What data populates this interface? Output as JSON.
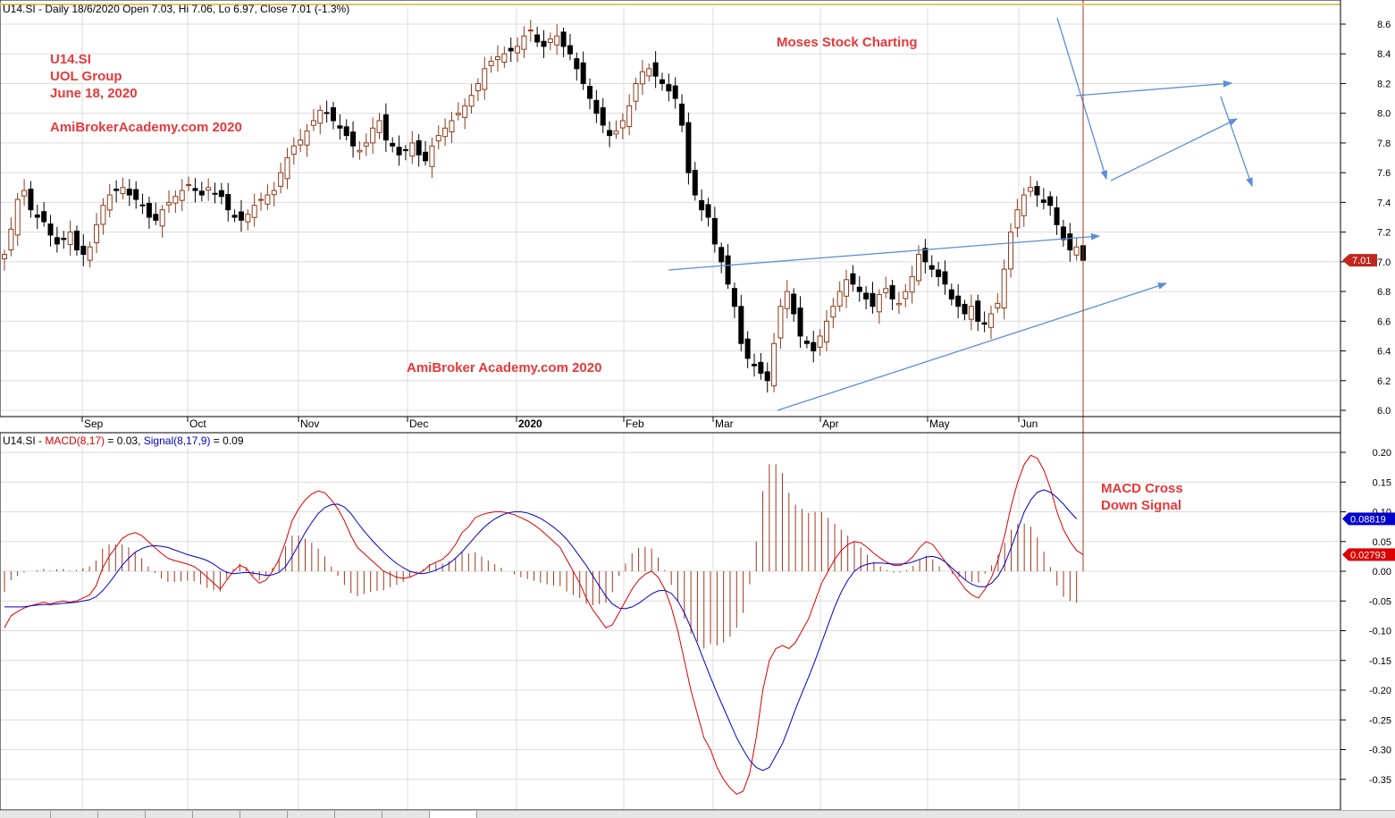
{
  "header": {
    "ticker": "U14.SI",
    "info": " - Daily 18/6/2020 Open 7.03, Hi 7.06, Lo 6.97, Close 7.01 (-1.3%)"
  },
  "macd_header": {
    "ticker": "U14.SI",
    "sep": " - ",
    "macd_label": "MACD(8,17)",
    "macd_value": " = 0.03, ",
    "signal_label": "Signal(8,17,9)",
    "signal_value": " = 0.09"
  },
  "annotations": {
    "ticker": "U14.SI",
    "company": "UOL Group",
    "date": "June 18, 2020",
    "site_top": "AmiBrokerAcademy.com  2020",
    "moses": "Moses Stock Charting",
    "site_mid": "AmiBroker Academy.com  2020",
    "macd_cross_1": "MACD Cross",
    "macd_cross_2": "Down Signal"
  },
  "colors": {
    "accent_red": "#e8383a",
    "candle_up": "#8b3a1a",
    "candle_down": "#000000",
    "macd_line": "#dd0000",
    "signal_line": "#0000cc",
    "histogram": "#a03820",
    "trendline": "#5b8fd6",
    "grid": "#dcdcdc"
  },
  "chart_data": [
    {
      "type": "candlestick",
      "title": "U14.SI - Daily",
      "ylim": [
        5.95,
        8.7
      ],
      "yticks": [
        "8.6",
        "8.4",
        "8.2",
        "8.0",
        "7.8",
        "7.6",
        "7.4",
        "7.2",
        "7.0",
        "6.8",
        "6.6",
        "6.4",
        "6.2",
        "6.0"
      ],
      "months": [
        "Sep",
        "Oct",
        "Nov",
        "Dec",
        "2020",
        "Feb",
        "Mar",
        "Apr",
        "May",
        "Jun"
      ],
      "last_close_label": "7.01",
      "last_close": 7.01,
      "closes": [
        7.05,
        7.22,
        7.42,
        7.48,
        7.35,
        7.3,
        7.27,
        7.18,
        7.12,
        7.15,
        7.2,
        7.08,
        7.05,
        7.1,
        7.25,
        7.38,
        7.45,
        7.48,
        7.5,
        7.45,
        7.42,
        7.38,
        7.3,
        7.28,
        7.35,
        7.4,
        7.44,
        7.48,
        7.52,
        7.48,
        7.45,
        7.5,
        7.46,
        7.44,
        7.35,
        7.3,
        7.28,
        7.32,
        7.38,
        7.42,
        7.45,
        7.48,
        7.6,
        7.7,
        7.78,
        7.82,
        7.88,
        7.95,
        8.02,
        8.0,
        7.95,
        7.9,
        7.85,
        7.78,
        7.75,
        7.8,
        7.9,
        7.95,
        7.82,
        7.78,
        7.72,
        7.75,
        7.8,
        7.72,
        7.68,
        7.78,
        7.85,
        7.9,
        7.95,
        8.0,
        8.05,
        8.12,
        8.2,
        8.3,
        8.35,
        8.38,
        8.4,
        8.42,
        8.45,
        8.52,
        8.56,
        8.48,
        8.45,
        8.5,
        8.52,
        8.45,
        8.4,
        8.3,
        8.2,
        8.1,
        8.0,
        7.92,
        7.85,
        7.88,
        7.95,
        8.05,
        8.2,
        8.28,
        8.3,
        8.25,
        8.2,
        8.15,
        8.1,
        7.92,
        7.6,
        7.45,
        7.35,
        7.3,
        7.12,
        7.0,
        6.85,
        6.7,
        6.45,
        6.35,
        6.3,
        6.25,
        6.2,
        6.45,
        6.7,
        6.8,
        6.65,
        6.5,
        6.45,
        6.4,
        6.5,
        6.6,
        6.7,
        6.8,
        6.88,
        6.85,
        6.8,
        6.75,
        6.7,
        6.78,
        6.82,
        6.75,
        6.72,
        6.8,
        6.9,
        7.05,
        7.0,
        6.95,
        6.9,
        6.85,
        6.75,
        6.7,
        6.65,
        6.7,
        6.6,
        6.58,
        6.65,
        6.72,
        6.95,
        7.2,
        7.35,
        7.45,
        7.5,
        7.45,
        7.4,
        7.38,
        7.25,
        7.15,
        7.08,
        7.1,
        7.01
      ],
      "gap_after_index": [
        101
      ]
    },
    {
      "type": "line",
      "title": "MACD(8,17) and Signal(8,17,9)",
      "ylim": [
        -0.4,
        0.23
      ],
      "yticks": [
        "0.20",
        "0.15",
        "0.10",
        "0.05",
        "0.00",
        "-0.05",
        "-0.10",
        "-0.15",
        "-0.20",
        "-0.25",
        "-0.30",
        "-0.35"
      ],
      "series": [
        {
          "name": "MACD(8,17)",
          "last_value_label": "0.02793",
          "last_value": 0.02793
        },
        {
          "name": "Signal(8,17,9)",
          "last_value_label": "0.08819",
          "last_value": 0.08819
        }
      ],
      "macd_values": [
        -0.095,
        -0.075,
        -0.068,
        -0.062,
        -0.058,
        -0.055,
        -0.052,
        -0.055,
        -0.052,
        -0.05,
        -0.052,
        -0.05,
        -0.045,
        -0.04,
        -0.025,
        0.005,
        0.025,
        0.04,
        0.055,
        0.062,
        0.065,
        0.06,
        0.05,
        0.04,
        0.03,
        0.022,
        0.018,
        0.015,
        0.012,
        0.008,
        0.0,
        -0.01,
        -0.02,
        -0.03,
        -0.015,
        0.0,
        0.01,
        0.005,
        -0.01,
        -0.02,
        -0.015,
        0.0,
        0.02,
        0.05,
        0.085,
        0.105,
        0.12,
        0.13,
        0.135,
        0.132,
        0.12,
        0.105,
        0.085,
        0.06,
        0.04,
        0.03,
        0.02,
        0.01,
        0.0,
        -0.005,
        -0.01,
        -0.012,
        -0.01,
        -0.005,
        0.0,
        0.01,
        0.015,
        0.02,
        0.03,
        0.045,
        0.065,
        0.075,
        0.09,
        0.095,
        0.098,
        0.1,
        0.1,
        0.098,
        0.095,
        0.09,
        0.085,
        0.078,
        0.07,
        0.06,
        0.05,
        0.04,
        0.02,
        0.0,
        -0.02,
        -0.045,
        -0.065,
        -0.08,
        -0.095,
        -0.09,
        -0.07,
        -0.05,
        -0.03,
        -0.015,
        -0.005,
        0.0,
        -0.01,
        -0.03,
        -0.06,
        -0.1,
        -0.15,
        -0.2,
        -0.24,
        -0.28,
        -0.3,
        -0.33,
        -0.35,
        -0.365,
        -0.375,
        -0.37,
        -0.34,
        -0.28,
        -0.2,
        -0.15,
        -0.13,
        -0.125,
        -0.13,
        -0.12,
        -0.1,
        -0.08,
        -0.05,
        -0.02,
        0.0,
        0.02,
        0.035,
        0.045,
        0.05,
        0.048,
        0.04,
        0.03,
        0.022,
        0.015,
        0.01,
        0.01,
        0.015,
        0.025,
        0.04,
        0.05,
        0.045,
        0.03,
        0.015,
        0.0,
        -0.015,
        -0.03,
        -0.04,
        -0.045,
        -0.03,
        -0.01,
        0.02,
        0.06,
        0.11,
        0.15,
        0.18,
        0.195,
        0.19,
        0.17,
        0.14,
        0.1,
        0.07,
        0.05,
        0.035,
        0.028
      ],
      "signal_values": [
        -0.06,
        -0.06,
        -0.06,
        -0.06,
        -0.058,
        -0.057,
        -0.056,
        -0.056,
        -0.055,
        -0.054,
        -0.053,
        -0.052,
        -0.05,
        -0.048,
        -0.043,
        -0.033,
        -0.02,
        -0.005,
        0.01,
        0.022,
        0.032,
        0.038,
        0.042,
        0.043,
        0.042,
        0.04,
        0.036,
        0.032,
        0.028,
        0.025,
        0.022,
        0.018,
        0.012,
        0.004,
        -0.002,
        -0.004,
        -0.003,
        -0.002,
        -0.003,
        -0.005,
        -0.007,
        -0.006,
        -0.002,
        0.008,
        0.025,
        0.045,
        0.065,
        0.082,
        0.097,
        0.107,
        0.112,
        0.113,
        0.108,
        0.097,
        0.082,
        0.068,
        0.055,
        0.043,
        0.032,
        0.022,
        0.013,
        0.006,
        0.0,
        -0.003,
        -0.004,
        -0.002,
        0.002,
        0.007,
        0.013,
        0.022,
        0.033,
        0.045,
        0.058,
        0.07,
        0.08,
        0.088,
        0.094,
        0.098,
        0.1,
        0.1,
        0.098,
        0.094,
        0.089,
        0.082,
        0.074,
        0.065,
        0.054,
        0.04,
        0.025,
        0.01,
        -0.008,
        -0.025,
        -0.042,
        -0.055,
        -0.062,
        -0.063,
        -0.06,
        -0.054,
        -0.046,
        -0.038,
        -0.033,
        -0.032,
        -0.037,
        -0.05,
        -0.07,
        -0.095,
        -0.122,
        -0.15,
        -0.178,
        -0.205,
        -0.23,
        -0.255,
        -0.28,
        -0.3,
        -0.318,
        -0.33,
        -0.335,
        -0.33,
        -0.31,
        -0.29,
        -0.262,
        -0.232,
        -0.205,
        -0.178,
        -0.15,
        -0.12,
        -0.09,
        -0.06,
        -0.035,
        -0.015,
        0.0,
        0.008,
        0.012,
        0.014,
        0.014,
        0.013,
        0.012,
        0.012,
        0.013,
        0.016,
        0.02,
        0.024,
        0.025,
        0.022,
        0.015,
        0.005,
        -0.005,
        -0.015,
        -0.022,
        -0.026,
        -0.026,
        -0.02,
        -0.008,
        0.012,
        0.04,
        0.07,
        0.1,
        0.12,
        0.133,
        0.137,
        0.133,
        0.124,
        0.113,
        0.1,
        0.088
      ]
    }
  ]
}
